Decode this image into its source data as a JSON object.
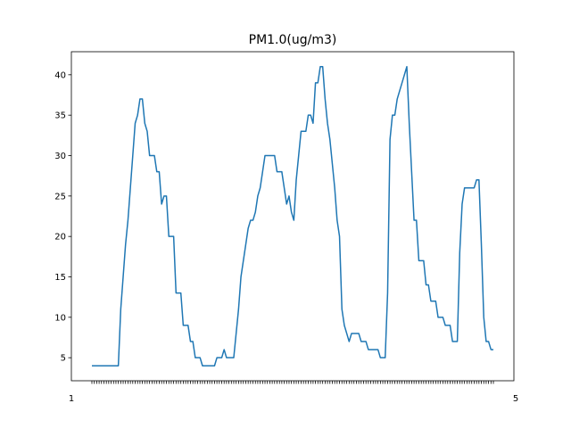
{
  "chart_data": {
    "type": "line",
    "title": "PM1.0(ug/m3)",
    "xlabel": "",
    "ylabel": "",
    "ylim": [
      2.15,
      42.85
    ],
    "yticks": [
      5,
      10,
      15,
      20,
      25,
      30,
      35,
      40
    ],
    "xtick_label_start": "1",
    "xtick_label_end": "5",
    "grid": false,
    "line_color": "#1f77b4",
    "series": [
      {
        "values": [
          4,
          4,
          4,
          4,
          4,
          4,
          4,
          4,
          4,
          4,
          4,
          4,
          11,
          15,
          19,
          22,
          26,
          30,
          34,
          35,
          37,
          37,
          34,
          33,
          30,
          30,
          30,
          28,
          28,
          24,
          25,
          25,
          20,
          20,
          20,
          13,
          13,
          13,
          9,
          9,
          9,
          7,
          7,
          5,
          5,
          5,
          4,
          4,
          4,
          4,
          4,
          4,
          5,
          5,
          5,
          6,
          5,
          5,
          5,
          5,
          8,
          11,
          15,
          17,
          19,
          21,
          22,
          22,
          23,
          25,
          26,
          28,
          30,
          30,
          30,
          30,
          30,
          28,
          28,
          28,
          26,
          24,
          25,
          23,
          22,
          27,
          30,
          33,
          33,
          33,
          35,
          35,
          34,
          39,
          39,
          41,
          41,
          37,
          34,
          32,
          29,
          26,
          22,
          20,
          11,
          9,
          8,
          7,
          8,
          8,
          8,
          8,
          7,
          7,
          7,
          6,
          6,
          6,
          6,
          6,
          5,
          5,
          5,
          13,
          32,
          35,
          35,
          37,
          38,
          39,
          40,
          41,
          34,
          28,
          22,
          22,
          17,
          17,
          17,
          14,
          14,
          12,
          12,
          12,
          10,
          10,
          10,
          9,
          9,
          9,
          7,
          7,
          7,
          18,
          24,
          26,
          26,
          26,
          26,
          26,
          27,
          27,
          19,
          10,
          7,
          7,
          6,
          6
        ]
      }
    ]
  }
}
